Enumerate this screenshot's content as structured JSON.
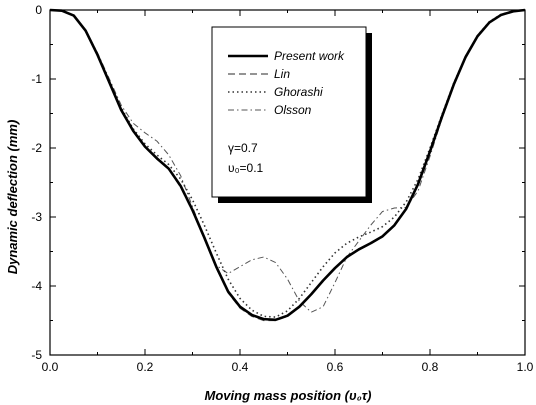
{
  "chart_data": {
    "type": "line",
    "title": "",
    "xlabel": "Moving mass position (υ₀τ)",
    "ylabel": "Dynamic deflection (mm)",
    "xlim": [
      0.0,
      1.0
    ],
    "ylim": [
      -5,
      0
    ],
    "xticks": [
      "0.0",
      "0.2",
      "0.4",
      "0.6",
      "0.8",
      "1.0"
    ],
    "yticks": [
      "0",
      "-1",
      "-2",
      "-3",
      "-4",
      "-5"
    ],
    "legend_position": "upper-center",
    "annotations": [
      "γ=0.7",
      "υ₀=0.1"
    ],
    "series": [
      {
        "name": "Present work",
        "style": "solid",
        "x": [
          0.0,
          0.025,
          0.05,
          0.075,
          0.1,
          0.125,
          0.15,
          0.175,
          0.2,
          0.225,
          0.25,
          0.275,
          0.3,
          0.325,
          0.35,
          0.375,
          0.4,
          0.425,
          0.45,
          0.475,
          0.5,
          0.525,
          0.55,
          0.575,
          0.6,
          0.625,
          0.65,
          0.675,
          0.7,
          0.725,
          0.75,
          0.775,
          0.8,
          0.825,
          0.85,
          0.875,
          0.9,
          0.925,
          0.95,
          0.975,
          1.0
        ],
        "values": [
          0.0,
          -0.01,
          -0.08,
          -0.3,
          -0.65,
          -1.05,
          -1.45,
          -1.75,
          -1.98,
          -2.15,
          -2.3,
          -2.55,
          -2.9,
          -3.3,
          -3.72,
          -4.08,
          -4.3,
          -4.42,
          -4.48,
          -4.49,
          -4.43,
          -4.3,
          -4.12,
          -3.92,
          -3.74,
          -3.58,
          -3.47,
          -3.38,
          -3.28,
          -3.12,
          -2.88,
          -2.52,
          -2.05,
          -1.55,
          -1.08,
          -0.68,
          -0.38,
          -0.18,
          -0.07,
          -0.02,
          0.0
        ]
      },
      {
        "name": "Lin",
        "style": "dashed",
        "x": [
          0.0,
          0.025,
          0.05,
          0.075,
          0.1,
          0.125,
          0.15,
          0.175,
          0.2,
          0.225,
          0.25,
          0.275,
          0.3,
          0.325,
          0.35,
          0.375,
          0.4,
          0.425,
          0.45,
          0.475,
          0.5,
          0.525,
          0.55,
          0.575,
          0.6,
          0.625,
          0.65,
          0.675,
          0.7,
          0.725,
          0.75,
          0.775,
          0.8,
          0.825,
          0.85,
          0.875,
          0.9,
          0.925,
          0.95,
          0.975,
          1.0
        ],
        "values": [
          0.0,
          -0.01,
          -0.08,
          -0.31,
          -0.66,
          -1.06,
          -1.46,
          -1.76,
          -1.99,
          -2.16,
          -2.31,
          -2.57,
          -2.92,
          -3.32,
          -3.74,
          -4.1,
          -4.32,
          -4.44,
          -4.5,
          -4.5,
          -4.44,
          -4.31,
          -4.13,
          -3.93,
          -3.75,
          -3.59,
          -3.48,
          -3.39,
          -3.29,
          -3.13,
          -2.89,
          -2.53,
          -2.06,
          -1.56,
          -1.09,
          -0.69,
          -0.39,
          -0.18,
          -0.07,
          -0.02,
          0.0
        ]
      },
      {
        "name": "Ghorashi",
        "style": "dotted",
        "x": [
          0.0,
          0.025,
          0.05,
          0.075,
          0.1,
          0.125,
          0.15,
          0.175,
          0.2,
          0.225,
          0.25,
          0.275,
          0.3,
          0.325,
          0.35,
          0.375,
          0.4,
          0.425,
          0.45,
          0.475,
          0.5,
          0.525,
          0.55,
          0.575,
          0.6,
          0.625,
          0.65,
          0.675,
          0.7,
          0.725,
          0.75,
          0.775,
          0.8,
          0.825,
          0.85,
          0.875,
          0.9,
          0.925,
          0.95,
          0.975,
          1.0
        ],
        "values": [
          0.0,
          -0.01,
          -0.08,
          -0.3,
          -0.64,
          -1.03,
          -1.42,
          -1.72,
          -1.94,
          -2.1,
          -2.24,
          -2.45,
          -2.75,
          -3.12,
          -3.52,
          -3.9,
          -4.18,
          -4.35,
          -4.44,
          -4.45,
          -4.36,
          -4.18,
          -3.95,
          -3.72,
          -3.52,
          -3.38,
          -3.29,
          -3.22,
          -3.14,
          -3.0,
          -2.78,
          -2.45,
          -2.0,
          -1.52,
          -1.06,
          -0.67,
          -0.37,
          -0.17,
          -0.06,
          -0.02,
          0.0
        ]
      },
      {
        "name": "Olsson",
        "style": "dashdot",
        "x": [
          0.0,
          0.025,
          0.05,
          0.075,
          0.1,
          0.125,
          0.15,
          0.175,
          0.2,
          0.225,
          0.25,
          0.275,
          0.3,
          0.325,
          0.35,
          0.375,
          0.4,
          0.425,
          0.45,
          0.475,
          0.5,
          0.525,
          0.55,
          0.575,
          0.6,
          0.625,
          0.65,
          0.675,
          0.7,
          0.725,
          0.75,
          0.775,
          0.8,
          0.825,
          0.85,
          0.875,
          0.9,
          0.925,
          0.95,
          0.975,
          1.0
        ],
        "values": [
          0.0,
          -0.01,
          -0.08,
          -0.29,
          -0.62,
          -1.0,
          -1.38,
          -1.64,
          -1.78,
          -1.9,
          -2.1,
          -2.4,
          -2.85,
          -3.3,
          -3.7,
          -3.82,
          -3.72,
          -3.62,
          -3.58,
          -3.66,
          -3.9,
          -4.22,
          -4.38,
          -4.3,
          -3.95,
          -3.58,
          -3.35,
          -3.12,
          -2.92,
          -2.87,
          -2.86,
          -2.62,
          -2.12,
          -1.58,
          -1.1,
          -0.7,
          -0.39,
          -0.18,
          -0.07,
          -0.02,
          0.0
        ]
      }
    ]
  }
}
